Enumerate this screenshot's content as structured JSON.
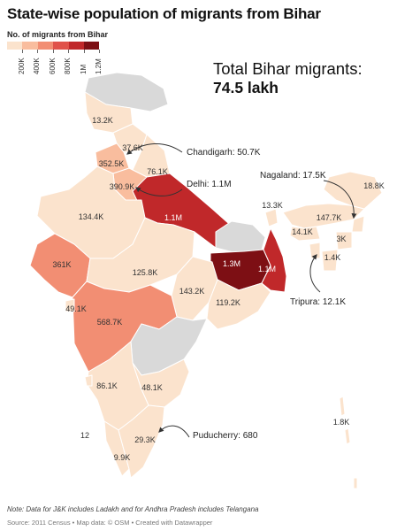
{
  "title": "State-wise population of migrants from Bihar",
  "legend": {
    "title": "No. of migrants from Bihar",
    "ticks": [
      "200K",
      "400K",
      "600K",
      "800K",
      "1M",
      "1.2M"
    ],
    "colors": [
      "#fbe3cd",
      "#f9bd9e",
      "#f28e73",
      "#e0524a",
      "#c0282a",
      "#7d0f14",
      "#d9d9d9"
    ]
  },
  "total": {
    "label": "Total Bihar migrants:",
    "value": "74.5 lakh"
  },
  "map_data": {
    "unit": "migrants from Bihar",
    "no_data_color": "#d9d9d9",
    "regions": [
      {
        "name": "Jammu & Kashmir",
        "label": "13.2K"
      },
      {
        "name": "Himachal Pradesh",
        "label": "37.6K"
      },
      {
        "name": "Punjab",
        "label": "352.5K"
      },
      {
        "name": "Uttarakhand",
        "label": "76.1K"
      },
      {
        "name": "Haryana",
        "label": "390.9K"
      },
      {
        "name": "Uttar Pradesh",
        "label": "1.1M"
      },
      {
        "name": "Rajasthan",
        "label": "134.4K"
      },
      {
        "name": "Gujarat",
        "label": "361K"
      },
      {
        "name": "Madhya Pradesh",
        "label": "125.8K"
      },
      {
        "name": "Chhattisgarh",
        "label": "143.2K"
      },
      {
        "name": "Odisha",
        "label": "119.2K"
      },
      {
        "name": "Jharkhand",
        "label": "1.3M"
      },
      {
        "name": "West Bengal",
        "label": "1.1M"
      },
      {
        "name": "Sikkim",
        "label": "13.3K"
      },
      {
        "name": "Assam",
        "label": "147.7K"
      },
      {
        "name": "Arunachal Pradesh",
        "label": "18.8K"
      },
      {
        "name": "Meghalaya",
        "label": "14.1K"
      },
      {
        "name": "Manipur",
        "label": "3K"
      },
      {
        "name": "Mizoram",
        "label": "1.4K"
      },
      {
        "name": "Daman & Diu / Dadra & Nagar Haveli",
        "label": "49.1K"
      },
      {
        "name": "Maharashtra",
        "label": "568.7K"
      },
      {
        "name": "Karnataka",
        "label": "86.1K"
      },
      {
        "name": "Andhra Pradesh",
        "label": "48.1K"
      },
      {
        "name": "Goa",
        "label": "12"
      },
      {
        "name": "Tamil Nadu",
        "label": "29.3K"
      },
      {
        "name": "Kerala",
        "label": "9.9K"
      },
      {
        "name": "Andaman & Nicobar",
        "label": "1.8K"
      },
      {
        "name": "Bihar",
        "label": ""
      }
    ]
  },
  "annotations": {
    "chandigarh": "Chandigarh: 50.7K",
    "delhi": "Delhi: 1.1M",
    "nagaland": "Nagaland: 17.5K",
    "tripura": "Tripura: 12.1K",
    "puducherry": "Puducherry: 680"
  },
  "note": "Note: Data for J&K includes Ladakh and for Andhra Pradesh includes Telangana",
  "source": "Source: 2011 Census • Map data: © OSM • Created with Datawrapper"
}
